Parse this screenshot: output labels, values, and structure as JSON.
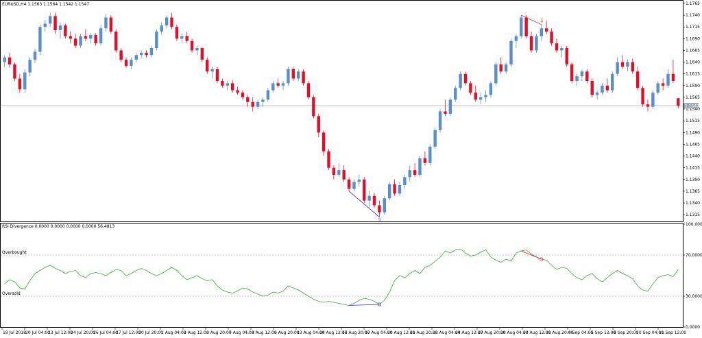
{
  "main_chart": {
    "header": "EURUSD,H4  1.1563 1.1564 1.1542 1.1547",
    "current_price_label": "1.1547",
    "y_ticks": [
      "1.1765",
      "1.1740",
      "1.1715",
      "1.1690",
      "1.1665",
      "1.1640",
      "1.1615",
      "1.1590",
      "1.1565",
      "1.1540",
      "1.1515",
      "1.1490",
      "1.1465",
      "1.1440",
      "1.1415",
      "1.1390",
      "1.1365",
      "1.1340",
      "1.1315"
    ],
    "colors": {
      "bull": "#5b8fc9",
      "bear": "#e0102b",
      "price_line": "#9aa4ad",
      "bull_divergence": "#2a2ae8",
      "bear_divergence": "#e0102b"
    }
  },
  "sub_chart": {
    "header": "RSI Divergence  0.0000 0.0000 0.0000 0.0000 56.4813",
    "overbought_label": "Overbought",
    "oversold_label": "Oversold",
    "y_ticks": [
      "100.0000",
      "70.0000",
      "30.0000",
      "0.0000"
    ],
    "colors": {
      "rsi": "#3da63d",
      "levels": "#b0b0b0"
    }
  },
  "x_ticks": [
    "19 Jul 2018",
    "20 Jul 04:00",
    "23 Jul 12:00",
    "24 Jul 20:00",
    "26 Jul 04:00",
    "27 Jul 12:00",
    "30 Jul 20:00",
    "1 Aug 04:00",
    "2 Aug 12:00",
    "3 Aug 20:00",
    "7 Aug 04:00",
    "8 Aug 12:00",
    "9 Aug 20:00",
    "13 Aug 04:00",
    "14 Aug 12:00",
    "15 Aug 20:00",
    "17 Aug 04:00",
    "20 Aug 12:00",
    "21 Aug 20:00",
    "23 Aug 04:00",
    "24 Aug 12:00",
    "27 Aug 20:00",
    "29 Aug 04:00",
    "30 Aug 12:00",
    "31 Aug 20:00",
    "4 Sep 04:00",
    "5 Sep 12:00",
    "6 Sep 20:00",
    "10 Sep 04:00",
    "11 Sep 12:00"
  ],
  "chart_data": [
    {
      "type": "candlestick",
      "symbol": "EURUSD",
      "timeframe": "H4",
      "ylim": [
        1.1305,
        1.1765
      ],
      "ohlc": [
        [
          1.164,
          1.1655,
          1.163,
          1.165
        ],
        [
          1.165,
          1.166,
          1.1628,
          1.1635
        ],
        [
          1.1635,
          1.164,
          1.16,
          1.1605
        ],
        [
          1.1605,
          1.1615,
          1.1575,
          1.1582
        ],
        [
          1.1582,
          1.1625,
          1.1575,
          1.1618
        ],
        [
          1.1618,
          1.165,
          1.161,
          1.1645
        ],
        [
          1.1645,
          1.1668,
          1.1638,
          1.1662
        ],
        [
          1.1662,
          1.172,
          1.1655,
          1.1715
        ],
        [
          1.1715,
          1.173,
          1.1705,
          1.1722
        ],
        [
          1.1722,
          1.1745,
          1.1715,
          1.1738
        ],
        [
          1.1738,
          1.1745,
          1.17,
          1.1708
        ],
        [
          1.1708,
          1.1725,
          1.169,
          1.1718
        ],
        [
          1.1718,
          1.1722,
          1.169,
          1.1695
        ],
        [
          1.1695,
          1.1705,
          1.168,
          1.169
        ],
        [
          1.169,
          1.17,
          1.167,
          1.1675
        ],
        [
          1.1675,
          1.17,
          1.167,
          1.1695
        ],
        [
          1.1695,
          1.171,
          1.1685,
          1.169
        ],
        [
          1.169,
          1.1702,
          1.168,
          1.1698
        ],
        [
          1.1698,
          1.1702,
          1.1675,
          1.168
        ],
        [
          1.168,
          1.172,
          1.1675,
          1.1712
        ],
        [
          1.1712,
          1.1742,
          1.1705,
          1.1735
        ],
        [
          1.1735,
          1.174,
          1.17,
          1.1705
        ],
        [
          1.1705,
          1.171,
          1.166,
          1.1665
        ],
        [
          1.1665,
          1.167,
          1.164,
          1.1645
        ],
        [
          1.1645,
          1.165,
          1.1628,
          1.1632
        ],
        [
          1.1632,
          1.165,
          1.1625,
          1.1645
        ],
        [
          1.1645,
          1.166,
          1.164,
          1.1655
        ],
        [
          1.1655,
          1.1665,
          1.1648,
          1.166
        ],
        [
          1.166,
          1.1665,
          1.165,
          1.1655
        ],
        [
          1.1655,
          1.1675,
          1.165,
          1.167
        ],
        [
          1.167,
          1.171,
          1.1665,
          1.1705
        ],
        [
          1.1705,
          1.1725,
          1.1698,
          1.1718
        ],
        [
          1.1718,
          1.174,
          1.1712,
          1.1735
        ],
        [
          1.1735,
          1.1745,
          1.171,
          1.1715
        ],
        [
          1.1715,
          1.172,
          1.1685,
          1.169
        ],
        [
          1.169,
          1.17,
          1.1682,
          1.1695
        ],
        [
          1.1695,
          1.1705,
          1.168,
          1.1685
        ],
        [
          1.1685,
          1.169,
          1.166,
          1.1665
        ],
        [
          1.1665,
          1.1675,
          1.1655,
          1.167
        ],
        [
          1.167,
          1.1672,
          1.164,
          1.1645
        ],
        [
          1.1645,
          1.165,
          1.1615,
          1.162
        ],
        [
          1.162,
          1.163,
          1.1605,
          1.1625
        ],
        [
          1.1625,
          1.163,
          1.1595,
          1.16
        ],
        [
          1.16,
          1.1605,
          1.1585,
          1.159
        ],
        [
          1.159,
          1.16,
          1.158,
          1.1595
        ],
        [
          1.1595,
          1.1602,
          1.1575,
          1.158
        ],
        [
          1.158,
          1.1588,
          1.157,
          1.1575
        ],
        [
          1.1575,
          1.158,
          1.156,
          1.1565
        ],
        [
          1.1565,
          1.157,
          1.1545,
          1.1555
        ],
        [
          1.1555,
          1.1565,
          1.1535,
          1.1545
        ],
        [
          1.1545,
          1.156,
          1.154,
          1.1555
        ],
        [
          1.1555,
          1.1565,
          1.1545,
          1.156
        ],
        [
          1.156,
          1.1585,
          1.1555,
          1.158
        ],
        [
          1.158,
          1.16,
          1.1575,
          1.1595
        ],
        [
          1.1595,
          1.1605,
          1.1585,
          1.159
        ],
        [
          1.159,
          1.16,
          1.158,
          1.1595
        ],
        [
          1.1595,
          1.163,
          1.159,
          1.1625
        ],
        [
          1.1625,
          1.163,
          1.16,
          1.1605
        ],
        [
          1.1605,
          1.1625,
          1.16,
          1.162
        ],
        [
          1.162,
          1.1625,
          1.159,
          1.1595
        ],
        [
          1.1595,
          1.16,
          1.156,
          1.1565
        ],
        [
          1.1565,
          1.157,
          1.152,
          1.1525
        ],
        [
          1.1525,
          1.153,
          1.148,
          1.149
        ],
        [
          1.149,
          1.1495,
          1.144,
          1.145
        ],
        [
          1.145,
          1.1455,
          1.141,
          1.1415
        ],
        [
          1.1415,
          1.142,
          1.139,
          1.14
        ],
        [
          1.14,
          1.1425,
          1.1395,
          1.141
        ],
        [
          1.141,
          1.142,
          1.1385,
          1.139
        ],
        [
          1.139,
          1.1395,
          1.1365,
          1.137
        ],
        [
          1.137,
          1.139,
          1.1365,
          1.1385
        ],
        [
          1.1385,
          1.14,
          1.1375,
          1.139
        ],
        [
          1.139,
          1.1395,
          1.134,
          1.1345
        ],
        [
          1.1345,
          1.1365,
          1.133,
          1.1355
        ],
        [
          1.1355,
          1.1362,
          1.133,
          1.1335
        ],
        [
          1.1335,
          1.1345,
          1.131,
          1.132
        ],
        [
          1.132,
          1.1355,
          1.1315,
          1.135
        ],
        [
          1.135,
          1.1385,
          1.1345,
          1.138
        ],
        [
          1.138,
          1.139,
          1.1355,
          1.136
        ],
        [
          1.136,
          1.1385,
          1.1355,
          1.1378
        ],
        [
          1.1378,
          1.14,
          1.137,
          1.1395
        ],
        [
          1.1395,
          1.142,
          1.1385,
          1.141
        ],
        [
          1.141,
          1.1425,
          1.1395,
          1.14
        ],
        [
          1.14,
          1.144,
          1.1395,
          1.1435
        ],
        [
          1.1435,
          1.145,
          1.142,
          1.1425
        ],
        [
          1.1425,
          1.1465,
          1.142,
          1.146
        ],
        [
          1.146,
          1.15,
          1.1455,
          1.1495
        ],
        [
          1.1495,
          1.154,
          1.149,
          1.1535
        ],
        [
          1.1535,
          1.156,
          1.1525,
          1.153
        ],
        [
          1.153,
          1.1565,
          1.1525,
          1.156
        ],
        [
          1.156,
          1.159,
          1.1555,
          1.1585
        ],
        [
          1.1585,
          1.162,
          1.158,
          1.1615
        ],
        [
          1.1615,
          1.162,
          1.159,
          1.1595
        ],
        [
          1.1595,
          1.16,
          1.157,
          1.1575
        ],
        [
          1.1575,
          1.159,
          1.1555,
          1.156
        ],
        [
          1.156,
          1.1575,
          1.155,
          1.1565
        ],
        [
          1.1565,
          1.158,
          1.1555,
          1.157
        ],
        [
          1.157,
          1.16,
          1.1565,
          1.1595
        ],
        [
          1.1595,
          1.164,
          1.159,
          1.1635
        ],
        [
          1.1635,
          1.165,
          1.1615,
          1.162
        ],
        [
          1.162,
          1.164,
          1.1615,
          1.1635
        ],
        [
          1.1635,
          1.169,
          1.163,
          1.1685
        ],
        [
          1.1685,
          1.17,
          1.167,
          1.1695
        ],
        [
          1.1695,
          1.174,
          1.169,
          1.1735
        ],
        [
          1.1735,
          1.174,
          1.169,
          1.1695
        ],
        [
          1.1695,
          1.1705,
          1.166,
          1.1665
        ],
        [
          1.1665,
          1.17,
          1.166,
          1.1695
        ],
        [
          1.1695,
          1.172,
          1.1685,
          1.1712
        ],
        [
          1.1712,
          1.1728,
          1.17,
          1.1705
        ],
        [
          1.1705,
          1.1712,
          1.1675,
          1.168
        ],
        [
          1.168,
          1.169,
          1.166,
          1.1665
        ],
        [
          1.1665,
          1.1675,
          1.165,
          1.167
        ],
        [
          1.167,
          1.1675,
          1.163,
          1.1635
        ],
        [
          1.1635,
          1.164,
          1.1595,
          1.16
        ],
        [
          1.16,
          1.1615,
          1.159,
          1.161
        ],
        [
          1.161,
          1.1625,
          1.16,
          1.162
        ],
        [
          1.162,
          1.1625,
          1.1595,
          1.16
        ],
        [
          1.16,
          1.1605,
          1.1565,
          1.157
        ],
        [
          1.157,
          1.158,
          1.156,
          1.1575
        ],
        [
          1.1575,
          1.1595,
          1.157,
          1.159
        ],
        [
          1.159,
          1.1605,
          1.1575,
          1.158
        ],
        [
          1.158,
          1.162,
          1.1575,
          1.1615
        ],
        [
          1.1615,
          1.165,
          1.161,
          1.164
        ],
        [
          1.164,
          1.1655,
          1.1625,
          1.163
        ],
        [
          1.163,
          1.1645,
          1.162,
          1.164
        ],
        [
          1.164,
          1.1648,
          1.1615,
          1.162
        ],
        [
          1.162,
          1.163,
          1.158,
          1.1585
        ],
        [
          1.1585,
          1.159,
          1.1545,
          1.155
        ],
        [
          1.155,
          1.156,
          1.1535,
          1.1545
        ],
        [
          1.1545,
          1.158,
          1.154,
          1.1575
        ],
        [
          1.1575,
          1.16,
          1.157,
          1.1595
        ],
        [
          1.1595,
          1.1605,
          1.158,
          1.159
        ],
        [
          1.159,
          1.1625,
          1.1585,
          1.1615
        ],
        [
          1.1615,
          1.1645,
          1.1595,
          1.16
        ],
        [
          1.1563,
          1.1564,
          1.1542,
          1.1547
        ]
      ],
      "divergences": [
        {
          "kind": "bullish",
          "from_bar": 68,
          "to_bar": 74
        },
        {
          "kind": "bearish",
          "from_bar": 102,
          "to_bar": 106
        }
      ]
    },
    {
      "type": "line",
      "title": "RSI Divergence",
      "ylim": [
        0,
        100
      ],
      "levels": [
        70,
        30
      ],
      "series": [
        {
          "name": "",
          "values": [
            42,
            46,
            44,
            38,
            37,
            45,
            52,
            55,
            58,
            60,
            57,
            55,
            52,
            54,
            55,
            50,
            48,
            52,
            53,
            52,
            50,
            53,
            56,
            55,
            50,
            52,
            55,
            57,
            55,
            52,
            50,
            52,
            55,
            58,
            55,
            50,
            46,
            48,
            50,
            47,
            45,
            46,
            40,
            36,
            34,
            33,
            35,
            38,
            37,
            34,
            32,
            30,
            31,
            34,
            33,
            35,
            40,
            38,
            36,
            33,
            30,
            27,
            25,
            24,
            25,
            24,
            23,
            22,
            21,
            23,
            26,
            28,
            27,
            25,
            22,
            26,
            34,
            45,
            50,
            48,
            52,
            55,
            52,
            58,
            60,
            64,
            68,
            74,
            72,
            75,
            76,
            72,
            69,
            70,
            73,
            75,
            68,
            65,
            63,
            66,
            64,
            72,
            74,
            75,
            71,
            68,
            66,
            65,
            60,
            56,
            58,
            57,
            52,
            48,
            46,
            50,
            52,
            47,
            44,
            48,
            52,
            55,
            52,
            50,
            47,
            40,
            36,
            35,
            42,
            48,
            50,
            51,
            49,
            56
          ]
        }
      ]
    }
  ]
}
